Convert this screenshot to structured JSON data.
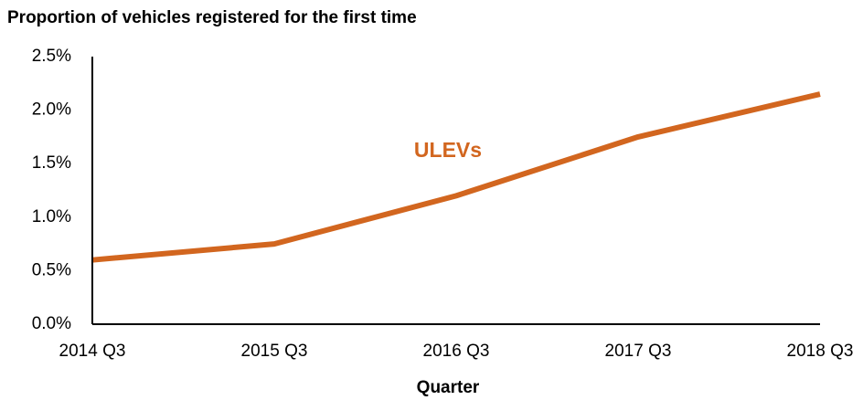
{
  "chart_data": {
    "type": "line",
    "title": "Proportion of vehicles registered for the first time",
    "x_label": "Quarter",
    "categories": [
      "2014 Q3",
      "2015 Q3",
      "2016 Q3",
      "2017 Q3",
      "2018 Q3"
    ],
    "series": [
      {
        "name": "ULEVs",
        "color": "#d2661f",
        "values": [
          0.6,
          0.75,
          1.2,
          1.75,
          2.15
        ]
      }
    ],
    "ylim": [
      0,
      2.5
    ],
    "yticks": [
      {
        "value": 0,
        "label": "0.0%"
      },
      {
        "value": 0.5,
        "label": "0.5%"
      },
      {
        "value": 1,
        "label": "1.0%"
      },
      {
        "value": 1.5,
        "label": "1.5%"
      },
      {
        "value": 2,
        "label": "2.0%"
      },
      {
        "value": 2.5,
        "label": "2.5%"
      }
    ],
    "grid": false
  }
}
